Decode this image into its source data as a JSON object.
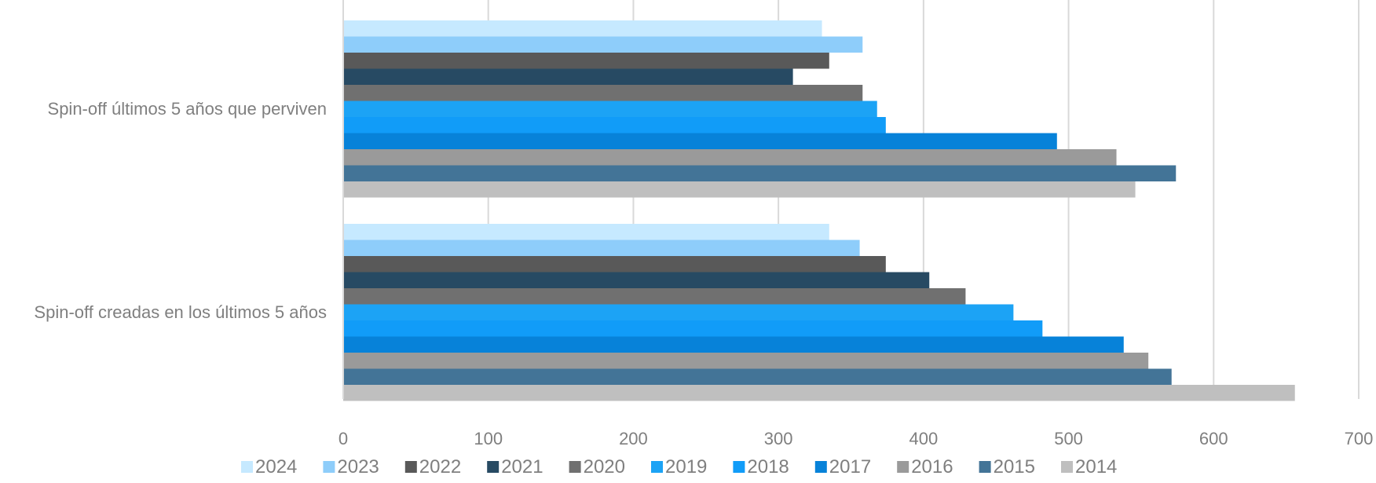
{
  "chart_data": {
    "type": "bar",
    "orientation": "horizontal",
    "categories": [
      "Spin-off  últimos 5 años que perviven",
      "Spin-off creadas en los últimos 5 años"
    ],
    "xlim": [
      0,
      700
    ],
    "ticks": [
      0,
      100,
      200,
      300,
      400,
      500,
      600,
      700
    ],
    "grid": true,
    "legend_position": "bottom",
    "series": [
      {
        "name": "2024",
        "color": "#c6e9ff",
        "values": [
          330,
          335
        ]
      },
      {
        "name": "2023",
        "color": "#8ecdfa",
        "values": [
          358,
          356
        ]
      },
      {
        "name": "2022",
        "color": "#595959",
        "values": [
          335,
          374
        ]
      },
      {
        "name": "2021",
        "color": "#274a63",
        "values": [
          310,
          404
        ]
      },
      {
        "name": "2020",
        "color": "#707070",
        "values": [
          358,
          429
        ]
      },
      {
        "name": "2019",
        "color": "#1ca3f5",
        "values": [
          368,
          462
        ]
      },
      {
        "name": "2018",
        "color": "#119cf8",
        "values": [
          374,
          482
        ]
      },
      {
        "name": "2017",
        "color": "#0782d9",
        "values": [
          492,
          538
        ]
      },
      {
        "name": "2016",
        "color": "#9a9a9a",
        "values": [
          533,
          555
        ]
      },
      {
        "name": "2015",
        "color": "#437497",
        "values": [
          574,
          571
        ]
      },
      {
        "name": "2014",
        "color": "#bfbfbf",
        "values": [
          546,
          656
        ]
      }
    ]
  }
}
